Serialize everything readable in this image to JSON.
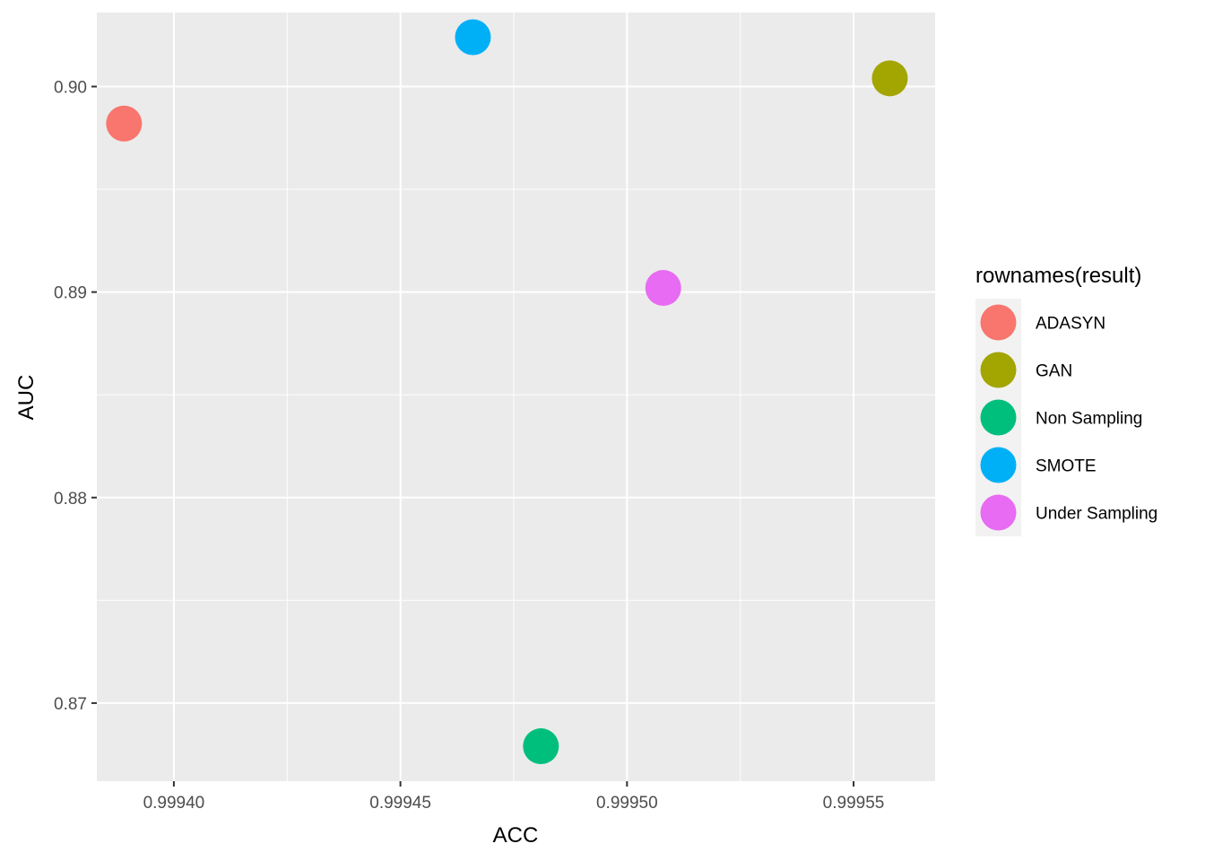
{
  "chart_data": {
    "type": "scatter",
    "xlabel": "ACC",
    "ylabel": "AUC",
    "xlim": [
      0.999383,
      0.999568
    ],
    "ylim": [
      0.8662,
      0.9036
    ],
    "x_ticks": [
      {
        "value": 0.9994,
        "label": "0.99940"
      },
      {
        "value": 0.99945,
        "label": "0.99945"
      },
      {
        "value": 0.9995,
        "label": "0.99950"
      },
      {
        "value": 0.99955,
        "label": "0.99955"
      }
    ],
    "y_ticks": [
      {
        "value": 0.87,
        "label": "0.87"
      },
      {
        "value": 0.88,
        "label": "0.88"
      },
      {
        "value": 0.89,
        "label": "0.89"
      },
      {
        "value": 0.9,
        "label": "0.90"
      }
    ],
    "x_minor": [
      0.999425,
      0.999475,
      0.999525
    ],
    "y_minor": [
      0.875,
      0.885,
      0.895
    ],
    "grid": true,
    "panel_background": "#ebebeb",
    "legend": {
      "title": "rownames(result)",
      "position": "right"
    },
    "series": [
      {
        "name": "ADASYN",
        "color": "#F8766D",
        "x": 0.999389,
        "y": 0.8982
      },
      {
        "name": "GAN",
        "color": "#A3A500",
        "x": 0.999558,
        "y": 0.9004
      },
      {
        "name": "Non Sampling",
        "color": "#00BF7D",
        "x": 0.999481,
        "y": 0.8679
      },
      {
        "name": "SMOTE",
        "color": "#00B0F6",
        "x": 0.999466,
        "y": 0.9024
      },
      {
        "name": "Under Sampling",
        "color": "#E76BF3",
        "x": 0.999508,
        "y": 0.8902
      }
    ]
  }
}
